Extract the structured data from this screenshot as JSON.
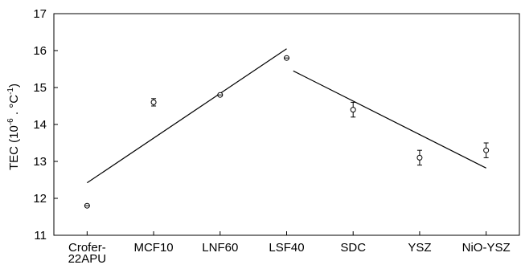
{
  "chart_data": {
    "type": "scatter",
    "title": "",
    "xlabel": "",
    "ylabel": {
      "base": "TEC (10",
      "exp1": "-6",
      "mid": " . °C",
      "exp2": "-1",
      "end": ")"
    },
    "categories": [
      [
        "Crofer-",
        "22APU"
      ],
      [
        "MCF10"
      ],
      [
        "LNF60"
      ],
      [
        "LSF40"
      ],
      [
        "SDC"
      ],
      [
        "YSZ"
      ],
      [
        "NiO-YSZ"
      ]
    ],
    "ylim": [
      11,
      17
    ],
    "yticks": [
      11,
      12,
      13,
      14,
      15,
      16,
      17
    ],
    "grid": false,
    "series": [
      {
        "values": [
          11.8,
          14.6,
          14.8,
          15.8,
          14.4,
          13.1,
          13.3
        ],
        "errors": [
          0.02,
          0.1,
          0.03,
          0.03,
          0.2,
          0.2,
          0.2
        ]
      }
    ],
    "trend_lines": [
      {
        "from": [
          0,
          12.42
        ],
        "to": [
          3,
          16.05
        ]
      },
      {
        "from": [
          3.1,
          15.45
        ],
        "to": [
          6,
          12.82
        ]
      }
    ]
  }
}
